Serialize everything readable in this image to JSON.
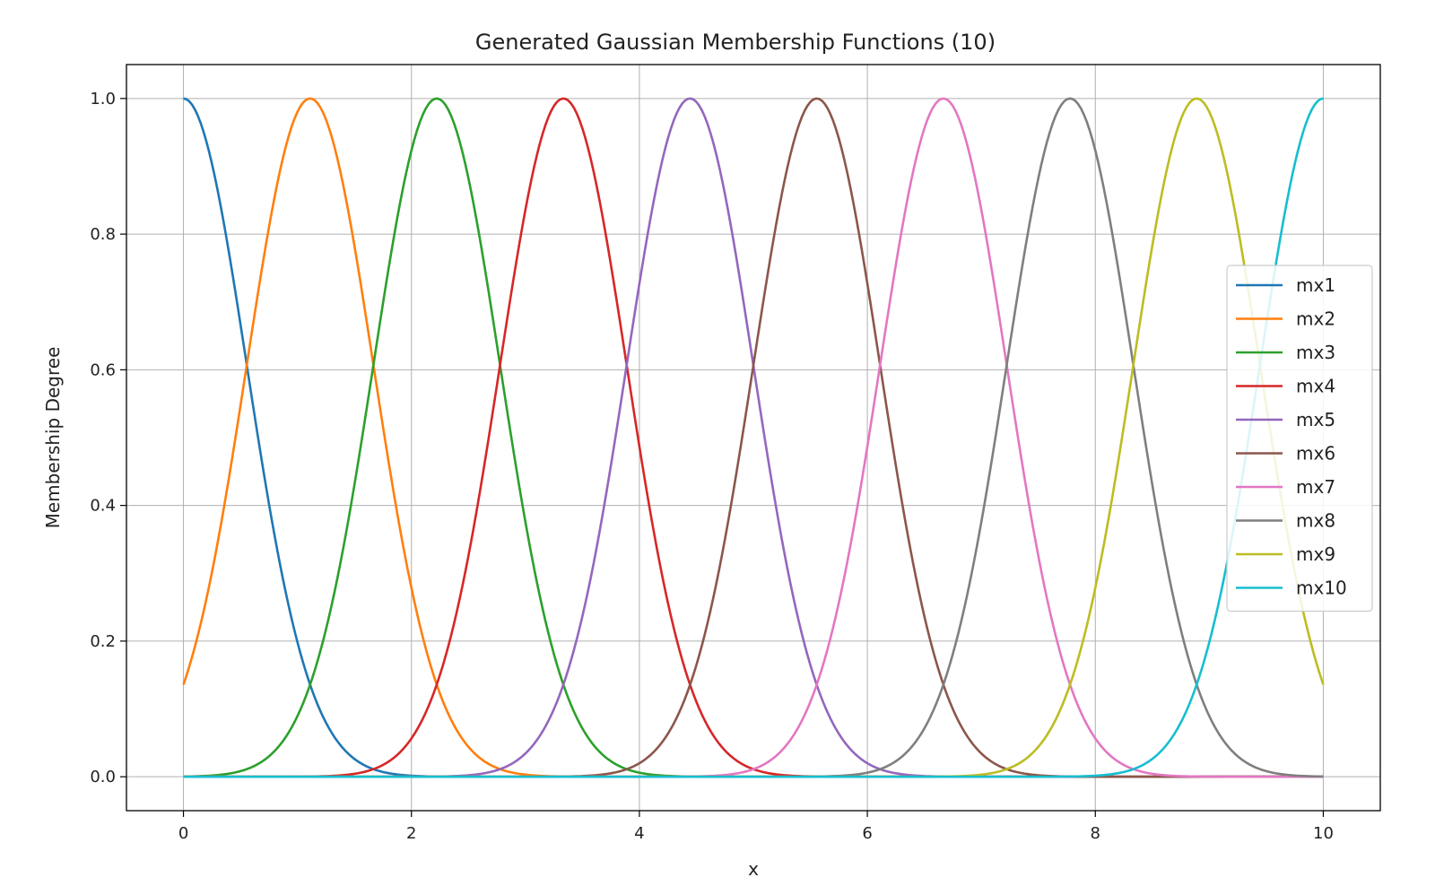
{
  "chart_data": {
    "type": "line",
    "title": "Generated Gaussian Membership Functions (10)",
    "xlabel": "x",
    "ylabel": "Membership Degree",
    "xlim": [
      -0.5,
      10.5
    ],
    "ylim": [
      -0.05,
      1.05
    ],
    "xticks": [
      0,
      2,
      4,
      6,
      8,
      10
    ],
    "yticks": [
      0.0,
      0.2,
      0.4,
      0.6,
      0.8,
      1.0
    ],
    "grid": true,
    "legend_position": "center-right",
    "x_range": [
      0,
      10
    ],
    "series": [
      {
        "name": "mx1",
        "center": 0.0,
        "sigma": 0.556,
        "color": "#1f77b4"
      },
      {
        "name": "mx2",
        "center": 1.111,
        "sigma": 0.556,
        "color": "#ff7f0e"
      },
      {
        "name": "mx3",
        "center": 2.222,
        "sigma": 0.556,
        "color": "#2ca02c"
      },
      {
        "name": "mx4",
        "center": 3.333,
        "sigma": 0.556,
        "color": "#d62728"
      },
      {
        "name": "mx5",
        "center": 4.444,
        "sigma": 0.556,
        "color": "#9467bd"
      },
      {
        "name": "mx6",
        "center": 5.556,
        "sigma": 0.556,
        "color": "#8c564b"
      },
      {
        "name": "mx7",
        "center": 6.667,
        "sigma": 0.556,
        "color": "#e377c2"
      },
      {
        "name": "mx8",
        "center": 7.778,
        "sigma": 0.556,
        "color": "#7f7f7f"
      },
      {
        "name": "mx9",
        "center": 8.889,
        "sigma": 0.556,
        "color": "#bcbd22"
      },
      {
        "name": "mx10",
        "center": 10.0,
        "sigma": 0.556,
        "color": "#17becf"
      }
    ]
  }
}
